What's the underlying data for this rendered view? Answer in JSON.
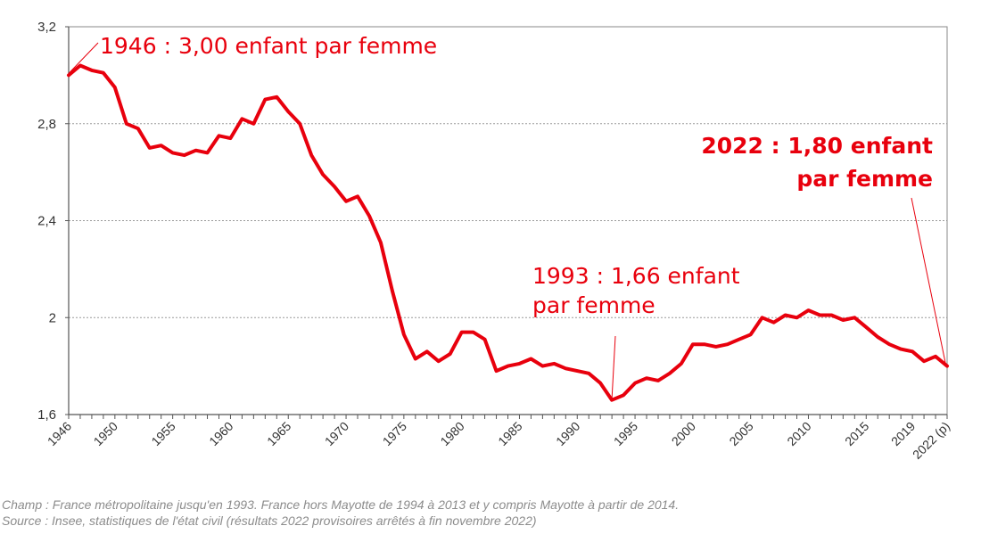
{
  "chart_data": {
    "type": "line",
    "title": "",
    "xlabel": "",
    "ylabel": "",
    "ylim": [
      1.6,
      3.2
    ],
    "y_ticks": [
      1.6,
      2,
      2.4,
      2.8,
      3.2
    ],
    "y_tick_labels": [
      "1,6",
      "2",
      "2,4",
      "2,8",
      "3,2"
    ],
    "x_tick_years": [
      1946,
      1950,
      1955,
      1960,
      1965,
      1970,
      1975,
      1980,
      1985,
      1990,
      1995,
      2000,
      2005,
      2010,
      2015,
      2019,
      2022
    ],
    "x_tick_labels": [
      "1946",
      "1950",
      "1955",
      "1960",
      "1965",
      "1970",
      "1975",
      "1980",
      "1985",
      "1990",
      "1995",
      "2000",
      "2005",
      "2010",
      "2015",
      "2019",
      "2022 (p)"
    ],
    "grid": "horizontal dotted",
    "line_color": "#e8000d",
    "series": [
      {
        "x": [
          1946,
          1947,
          1948,
          1949,
          1950,
          1951,
          1952,
          1953,
          1954,
          1955,
          1956,
          1957,
          1958,
          1959,
          1960,
          1961,
          1962,
          1963,
          1964,
          1965,
          1966,
          1967,
          1968,
          1969,
          1970,
          1971,
          1972,
          1973,
          1974,
          1975,
          1976,
          1977,
          1978,
          1979,
          1980,
          1981,
          1982,
          1983,
          1984,
          1985,
          1986,
          1987,
          1988,
          1989,
          1990,
          1991,
          1992,
          1993,
          1994,
          1995,
          1996,
          1997,
          1998,
          1999,
          2000,
          2001,
          2002,
          2003,
          2004,
          2005,
          2006,
          2007,
          2008,
          2009,
          2010,
          2011,
          2012,
          2013,
          2014,
          2015,
          2016,
          2017,
          2018,
          2019,
          2020,
          2021,
          2022
        ],
        "values": [
          3.0,
          3.04,
          3.02,
          3.01,
          2.95,
          2.8,
          2.78,
          2.7,
          2.71,
          2.68,
          2.67,
          2.69,
          2.68,
          2.75,
          2.74,
          2.82,
          2.8,
          2.9,
          2.91,
          2.85,
          2.8,
          2.67,
          2.59,
          2.54,
          2.48,
          2.5,
          2.42,
          2.31,
          2.11,
          1.93,
          1.83,
          1.86,
          1.82,
          1.85,
          1.94,
          1.94,
          1.91,
          1.78,
          1.8,
          1.81,
          1.83,
          1.8,
          1.81,
          1.79,
          1.78,
          1.77,
          1.73,
          1.66,
          1.68,
          1.73,
          1.75,
          1.74,
          1.77,
          1.81,
          1.89,
          1.89,
          1.88,
          1.89,
          1.91,
          1.93,
          2.0,
          1.98,
          2.01,
          2.0,
          2.03,
          2.01,
          2.01,
          1.99,
          2.0,
          1.96,
          1.92,
          1.89,
          1.87,
          1.86,
          1.82,
          1.84,
          1.8
        ]
      }
    ],
    "annotations": [
      {
        "year": 1946,
        "text_lines": [
          "1946 : 3,00 enfant par femme"
        ],
        "bold": false
      },
      {
        "year": 1993,
        "text_lines": [
          "1993 : 1,66 enfant",
          "par femme"
        ],
        "bold": false
      },
      {
        "year": 2022,
        "text_lines": [
          "2022 : 1,80 enfant",
          "par femme"
        ],
        "bold": true
      }
    ]
  },
  "notes": {
    "champ": "Champ : France métropolitaine jusqu'en 1993. France hors Mayotte de 1994 à 2013 et y compris Mayotte à partir de 2014.",
    "source": "Source : Insee, statistiques de l'état civil (résultats 2022 provisoires arrêtés à fin novembre 2022)"
  }
}
